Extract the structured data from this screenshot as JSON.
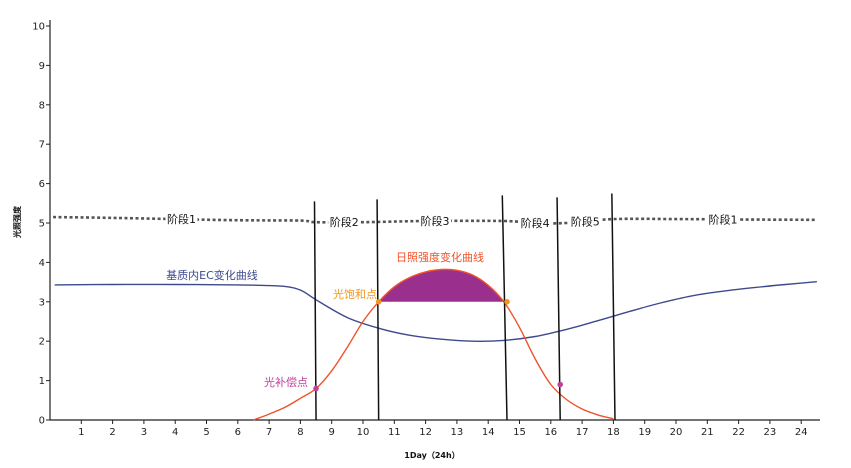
{
  "chart_data": {
    "type": "line",
    "xlabel": "1Day（24h）",
    "ylabel": "光照强度",
    "xlim": [
      0,
      24.6
    ],
    "ylim": [
      0,
      10
    ],
    "xticks": [
      1,
      2,
      3,
      4,
      5,
      6,
      7,
      8,
      9,
      10,
      11,
      12,
      13,
      14,
      15,
      16,
      17,
      18,
      19,
      20,
      21,
      22,
      23,
      24
    ],
    "yticks": [
      0,
      1,
      2,
      3,
      4,
      5,
      6,
      7,
      8,
      9,
      10
    ],
    "colors": {
      "ec": "#3d4a8c",
      "light": "#f0522a",
      "saturation_fill": "#9b2f8e",
      "stage_line": "#555555",
      "light_compensation": "#c0409a",
      "light_saturation": "#f0961e"
    },
    "series": [
      {
        "name": "基质内EC变化曲线",
        "color": "#3d4a8c",
        "x": [
          0.15,
          2,
          4,
          6,
          7,
          7.5,
          7.8,
          8.1,
          8.5,
          9.5,
          10.5,
          11.5,
          12.5,
          13.5,
          14.5,
          15.5,
          16.5,
          17.5,
          18.5,
          19.5,
          20.5,
          21.5,
          22.5,
          23.5,
          24.5
        ],
        "y": [
          3.43,
          3.44,
          3.44,
          3.43,
          3.41,
          3.39,
          3.35,
          3.26,
          3.05,
          2.6,
          2.33,
          2.15,
          2.05,
          2.0,
          2.02,
          2.12,
          2.3,
          2.52,
          2.75,
          2.97,
          3.15,
          3.27,
          3.36,
          3.44,
          3.51
        ]
      },
      {
        "name": "日照强度变化曲线",
        "color": "#f0522a",
        "x": [
          6.5,
          7,
          7.5,
          8,
          8.5,
          9,
          9.5,
          10,
          10.5,
          11,
          11.5,
          12,
          12.5,
          13,
          13.5,
          14,
          14.5,
          15,
          15.5,
          16,
          16.5,
          17,
          17.5,
          18
        ],
        "y": [
          0.0,
          0.15,
          0.32,
          0.55,
          0.8,
          1.25,
          1.85,
          2.5,
          3.0,
          3.38,
          3.62,
          3.76,
          3.82,
          3.8,
          3.68,
          3.42,
          3.0,
          2.35,
          1.55,
          0.9,
          0.52,
          0.28,
          0.13,
          0.03
        ]
      },
      {
        "name": "阶段",
        "style": "dashed",
        "color": "#555555",
        "x": [
          0.1,
          2,
          4,
          6,
          8,
          8.5,
          10,
          12,
          14.5,
          15.5,
          16.5,
          18,
          20,
          22,
          24.5
        ],
        "y": [
          5.15,
          5.13,
          5.1,
          5.07,
          5.06,
          5.02,
          5.02,
          5.05,
          5.05,
          5.0,
          5.0,
          5.1,
          5.1,
          5.09,
          5.08
        ]
      }
    ],
    "stage_dividers": [
      {
        "x_top": 8.45,
        "x_bottom": 8.5,
        "y_top": 5.55
      },
      {
        "x_top": 10.45,
        "x_bottom": 10.5,
        "y_top": 5.6
      },
      {
        "x_top": 14.45,
        "x_bottom": 14.6,
        "y_top": 5.7
      },
      {
        "x_top": 16.2,
        "x_bottom": 16.3,
        "y_top": 5.65
      },
      {
        "x_top": 17.95,
        "x_bottom": 18.05,
        "y_top": 5.75
      }
    ],
    "stages": [
      {
        "label": "阶段1",
        "x": 4.2
      },
      {
        "label": "阶段2",
        "x": 9.4
      },
      {
        "label": "阶段3",
        "x": 12.3
      },
      {
        "label": "阶段4",
        "x": 15.5
      },
      {
        "label": "阶段5",
        "x": 17.1
      },
      {
        "label": "阶段1",
        "x": 21.5
      }
    ],
    "annotations": {
      "light_curve_label": "日照强度变化曲线",
      "ec_curve_label": "基质内EC变化曲线",
      "saturation_point_label": "光饱和点",
      "compensation_point_label": "光补偿点"
    },
    "points": [
      {
        "name": "compensation",
        "x": 8.5,
        "y": 0.8
      },
      {
        "name": "compensation-2",
        "x": 16.3,
        "y": 0.9
      },
      {
        "name": "saturation-start",
        "x": 10.5,
        "y": 3.0
      },
      {
        "name": "saturation-end",
        "x": 14.6,
        "y": 3.0
      }
    ],
    "grid": false,
    "legend": "none"
  }
}
